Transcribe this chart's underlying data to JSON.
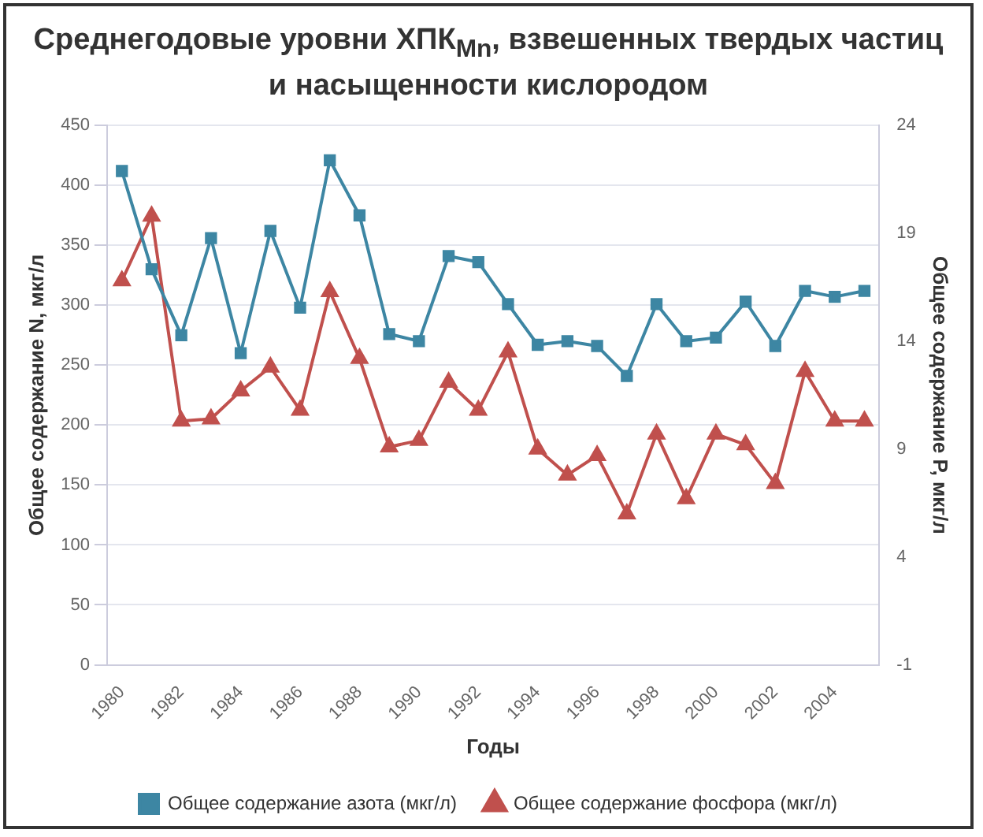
{
  "chart_data": {
    "type": "line",
    "title": "Среднегодовые уровни ХПК$_{Mn}$, взвешенных твердых частиц и насыщенности кислородом",
    "xlabel": "Годы",
    "ylabel": "Общее содержание N, мкг/л",
    "y2label": "Общее содержание P, мкг/л",
    "categories": [
      "1980",
      null,
      "1982",
      null,
      "1984",
      null,
      "1986",
      null,
      "1988",
      null,
      "1990",
      null,
      "1992",
      null,
      "1994",
      null,
      "1996",
      null,
      "1998",
      null,
      "2000",
      null,
      "2002",
      null,
      "2004",
      null
    ],
    "series": [
      {
        "name": "Общее содержание азота (мкг/л)",
        "color": "#3d86a3",
        "marker": "square",
        "values": [
          412,
          330,
          275,
          356,
          260,
          362,
          298,
          421,
          375,
          276,
          270,
          341,
          336,
          301,
          267,
          270,
          266,
          241,
          301,
          270,
          273,
          303,
          266,
          312,
          307,
          312
        ]
      },
      {
        "name": "Общее содержание фосфора (мкг/л)",
        "color": "#c0504d",
        "marker": "triangle",
        "axis": "y2",
        "values": [
          16.8,
          19.8,
          10.3,
          10.4,
          11.7,
          12.8,
          10.8,
          16.3,
          13.2,
          9.1,
          9.4,
          12.1,
          10.8,
          13.5,
          9.0,
          7.8,
          8.7,
          6.0,
          9.7,
          6.7,
          9.7,
          9.2,
          7.4,
          12.6,
          10.3,
          10.3
        ]
      }
    ],
    "ylim": [
      0,
      450
    ],
    "yticks": [
      0,
      50,
      100,
      150,
      200,
      250,
      300,
      350,
      400,
      450
    ],
    "y2lim": [
      -1,
      24
    ],
    "y2ticks": [
      -1,
      4,
      9,
      14,
      19,
      24
    ],
    "grid": "y",
    "legend": "bottom",
    "line_style": "solid"
  }
}
